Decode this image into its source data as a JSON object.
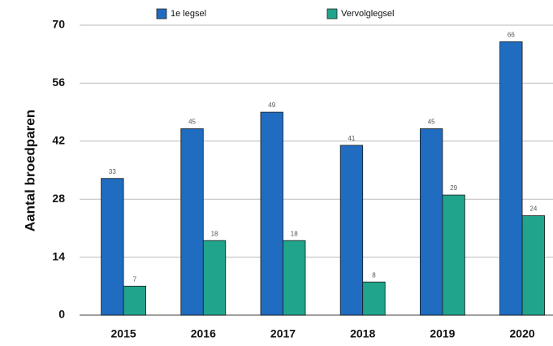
{
  "chart_data": {
    "type": "bar",
    "y_label": "Aantal broedparen",
    "categories": [
      "2015",
      "2016",
      "2017",
      "2018",
      "2019",
      "2020"
    ],
    "series": [
      {
        "name": "1e legsel",
        "color": "#1f6cc0",
        "values": [
          33,
          45,
          49,
          41,
          45,
          66
        ]
      },
      {
        "name": "Vervolglegsel",
        "color": "#20a48c",
        "values": [
          7,
          18,
          18,
          8,
          29,
          24
        ]
      }
    ],
    "ylim": [
      0,
      70
    ],
    "yticks": [
      0,
      14,
      28,
      42,
      56,
      70
    ],
    "grid": true,
    "legend": "top"
  }
}
